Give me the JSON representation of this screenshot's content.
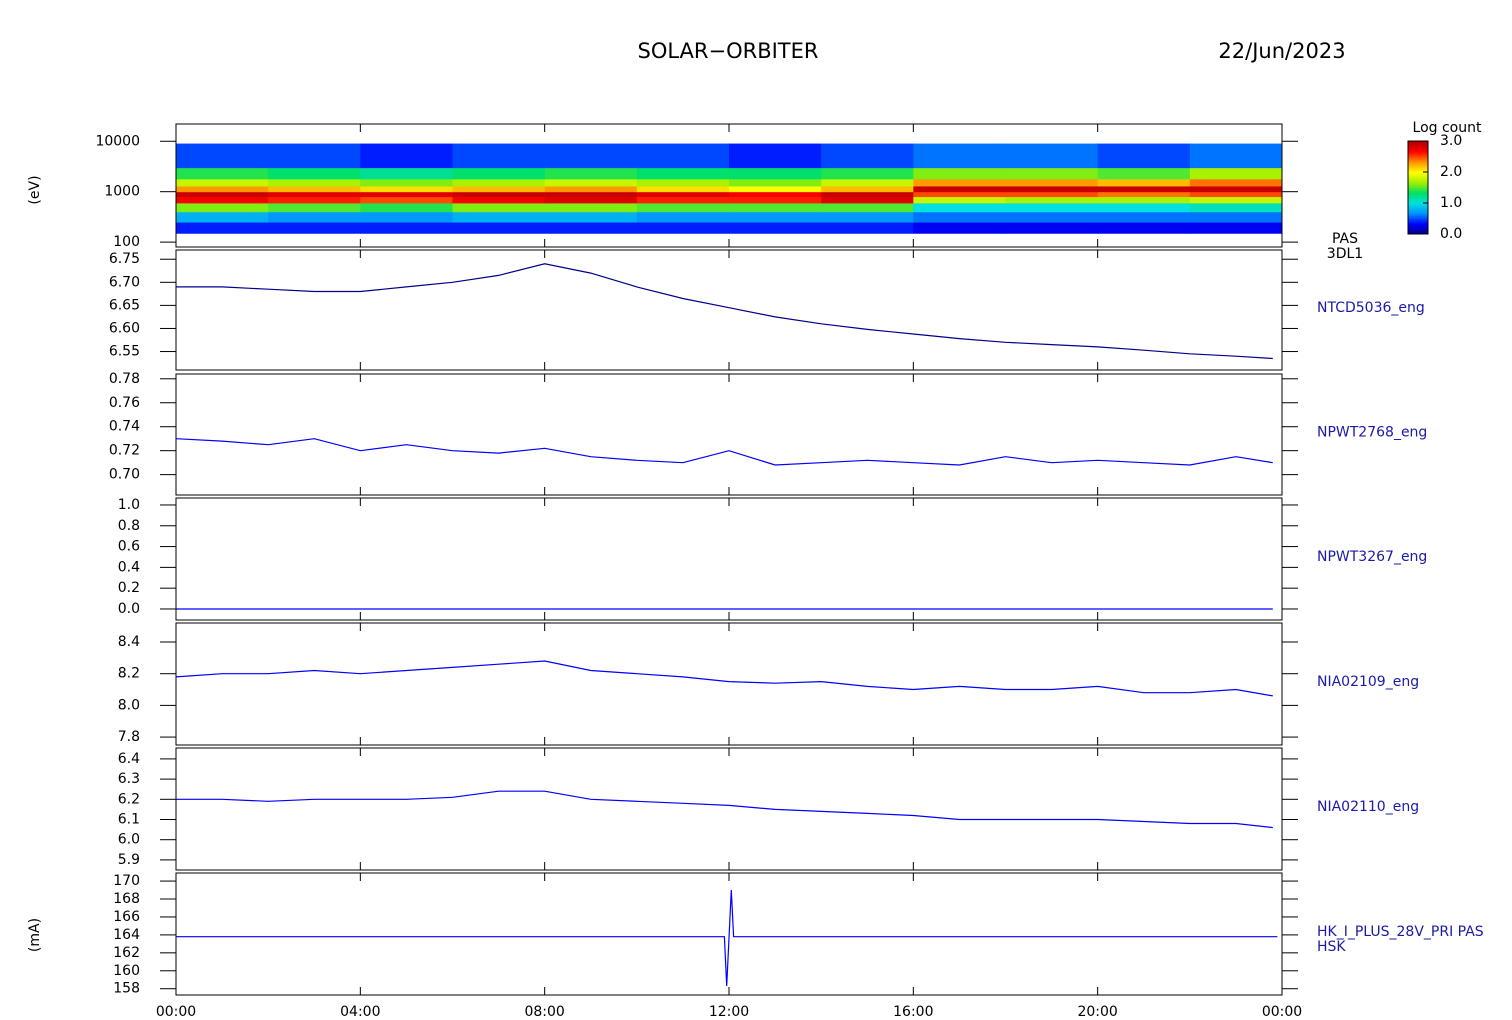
{
  "title": "SOLAR−ORBITER",
  "date": "22/Jun/2023",
  "chart_data": [
    {
      "type": "heatmap",
      "label_lines": [
        "PAS",
        "3DL1"
      ],
      "y_label": "(eV)",
      "log_y": true,
      "xlim": [
        0,
        24
      ],
      "ylim": [
        80,
        22000
      ],
      "yticks": [
        100,
        1000,
        10000
      ],
      "x_edges": [
        0,
        2,
        4,
        6,
        8,
        10,
        12,
        14,
        16,
        18,
        20,
        22,
        24
      ],
      "y_edges": [
        150,
        250,
        400,
        600,
        800,
        1000,
        1300,
        1800,
        3000,
        9000
      ],
      "z": [
        [
          0.4,
          0.4,
          0.4,
          0.4,
          0.4,
          0.4,
          0.4,
          0.4,
          0.3,
          0.3,
          0.3,
          0.3
        ],
        [
          0.8,
          0.7,
          0.7,
          0.8,
          0.8,
          0.7,
          0.7,
          0.7,
          0.6,
          0.6,
          0.6,
          0.6
        ],
        [
          1.6,
          1.5,
          1.4,
          1.6,
          1.6,
          1.5,
          1.5,
          1.5,
          1.0,
          1.0,
          1.0,
          1.1
        ],
        [
          2.7,
          2.6,
          2.5,
          2.7,
          2.8,
          2.6,
          2.6,
          2.8,
          1.8,
          1.7,
          1.7,
          1.8
        ],
        [
          2.9,
          2.8,
          2.8,
          2.9,
          2.9,
          2.8,
          2.7,
          2.9,
          2.5,
          2.5,
          2.4,
          2.5
        ],
        [
          2.3,
          2.2,
          2.1,
          2.2,
          2.3,
          2.1,
          2.0,
          2.2,
          2.9,
          2.9,
          2.9,
          2.9
        ],
        [
          1.8,
          1.7,
          1.6,
          1.7,
          1.8,
          1.7,
          1.6,
          1.8,
          2.3,
          2.3,
          2.2,
          2.4
        ],
        [
          1.4,
          1.3,
          1.2,
          1.3,
          1.4,
          1.3,
          1.3,
          1.4,
          1.6,
          1.6,
          1.5,
          1.7
        ],
        [
          0.5,
          0.5,
          0.4,
          0.5,
          0.5,
          0.5,
          0.4,
          0.5,
          0.6,
          0.6,
          0.5,
          0.6
        ]
      ],
      "colorbar": {
        "title": "Log count",
        "zlim": [
          0,
          3
        ],
        "ticks": [
          {
            "value": 3,
            "label": "3.0"
          },
          {
            "value": 2,
            "label": "2.0"
          },
          {
            "value": 1,
            "label": "1.0"
          },
          {
            "value": 0,
            "label": "0.0"
          }
        ],
        "colors": [
          "#000080",
          "#0000ff",
          "#0090ff",
          "#00e0e0",
          "#00e060",
          "#a0f000",
          "#ffff00",
          "#ff9000",
          "#ff0000",
          "#b00000"
        ]
      }
    },
    {
      "type": "line",
      "label_lines": [
        "NTCD5036_eng"
      ],
      "xlim": [
        0,
        24
      ],
      "ylim": [
        6.51,
        6.77
      ],
      "yticks": [
        {
          "value": 6.55,
          "label": "6.55"
        },
        {
          "value": 6.6,
          "label": "6.60"
        },
        {
          "value": 6.65,
          "label": "6.65"
        },
        {
          "value": 6.7,
          "label": "6.70"
        },
        {
          "value": 6.75,
          "label": "6.75"
        }
      ],
      "x": [
        0,
        1,
        2,
        3,
        4,
        5,
        6,
        7,
        8,
        9,
        10,
        11,
        12,
        13,
        14,
        15,
        16,
        17,
        18,
        19,
        20,
        21,
        22,
        23,
        23.8
      ],
      "series": [
        {
          "color": "#00008b",
          "values": [
            6.69,
            6.69,
            6.685,
            6.68,
            6.68,
            6.69,
            6.7,
            6.715,
            6.74,
            6.72,
            6.69,
            6.665,
            6.645,
            6.625,
            6.61,
            6.598,
            6.588,
            6.578,
            6.57,
            6.565,
            6.56,
            6.553,
            6.545,
            6.54,
            6.535
          ]
        }
      ]
    },
    {
      "type": "line",
      "label_lines": [
        "NPWT2768_eng"
      ],
      "xlim": [
        0,
        24
      ],
      "ylim": [
        0.683,
        0.784
      ],
      "yticks": [
        {
          "value": 0.7,
          "label": "0.70"
        },
        {
          "value": 0.72,
          "label": "0.72"
        },
        {
          "value": 0.74,
          "label": "0.74"
        },
        {
          "value": 0.76,
          "label": "0.76"
        },
        {
          "value": 0.78,
          "label": "0.78"
        }
      ],
      "x": [
        0,
        1,
        2,
        3,
        4,
        5,
        6,
        7,
        8,
        9,
        10,
        11,
        12,
        13,
        14,
        15,
        16,
        17,
        18,
        19,
        20,
        21,
        22,
        23,
        23.8
      ],
      "series": [
        {
          "color": "#0000ff",
          "values": [
            0.73,
            0.728,
            0.725,
            0.73,
            0.72,
            0.725,
            0.72,
            0.718,
            0.722,
            0.715,
            0.712,
            0.71,
            0.72,
            0.708,
            0.71,
            0.712,
            0.71,
            0.708,
            0.715,
            0.71,
            0.712,
            0.71,
            0.708,
            0.715,
            0.71
          ]
        }
      ]
    },
    {
      "type": "line",
      "label_lines": [
        "NPWT3267_eng"
      ],
      "xlim": [
        0,
        24
      ],
      "ylim": [
        -0.106,
        1.067
      ],
      "yticks": [
        {
          "value": 0,
          "label": "0.0"
        },
        {
          "value": 0.2,
          "label": "0.2"
        },
        {
          "value": 0.4,
          "label": "0.4"
        },
        {
          "value": 0.6,
          "label": "0.6"
        },
        {
          "value": 0.8,
          "label": "0.8"
        },
        {
          "value": 1,
          "label": "1.0"
        }
      ],
      "x": [
        0,
        23.8
      ],
      "series": [
        {
          "color": "#0000ff",
          "values": [
            0,
            0
          ]
        }
      ]
    },
    {
      "type": "line",
      "label_lines": [
        "NIA02109_eng"
      ],
      "xlim": [
        0,
        24
      ],
      "ylim": [
        7.75,
        8.52
      ],
      "yticks": [
        {
          "value": 7.8,
          "label": "7.8"
        },
        {
          "value": 8,
          "label": "8.0"
        },
        {
          "value": 8.2,
          "label": "8.2"
        },
        {
          "value": 8.4,
          "label": "8.4"
        }
      ],
      "x": [
        0,
        1,
        2,
        3,
        4,
        5,
        6,
        7,
        8,
        9,
        10,
        11,
        12,
        13,
        14,
        15,
        16,
        17,
        18,
        19,
        20,
        21,
        22,
        23,
        23.8
      ],
      "series": [
        {
          "color": "#0000ff",
          "values": [
            8.18,
            8.2,
            8.2,
            8.22,
            8.2,
            8.22,
            8.24,
            8.26,
            8.28,
            8.22,
            8.2,
            8.18,
            8.15,
            8.14,
            8.15,
            8.12,
            8.1,
            8.12,
            8.1,
            8.1,
            8.12,
            8.08,
            8.08,
            8.1,
            8.06
          ]
        }
      ]
    },
    {
      "type": "line",
      "label_lines": [
        "NIA02110_eng"
      ],
      "xlim": [
        0,
        24
      ],
      "ylim": [
        5.85,
        6.454
      ],
      "yticks": [
        {
          "value": 5.9,
          "label": "5.9"
        },
        {
          "value": 6,
          "label": "6.0"
        },
        6.1,
        6.2,
        6.3,
        6.4
      ],
      "x": [
        0,
        1,
        2,
        3,
        4,
        5,
        6,
        7,
        8,
        9,
        10,
        11,
        12,
        13,
        14,
        15,
        16,
        17,
        18,
        19,
        20,
        21,
        22,
        23,
        23.8
      ],
      "series": [
        {
          "color": "#0000ff",
          "values": [
            6.2,
            6.2,
            6.19,
            6.2,
            6.2,
            6.2,
            6.21,
            6.24,
            6.24,
            6.2,
            6.19,
            6.18,
            6.17,
            6.15,
            6.14,
            6.13,
            6.12,
            6.1,
            6.1,
            6.1,
            6.1,
            6.09,
            6.08,
            6.08,
            6.06
          ]
        }
      ]
    },
    {
      "type": "line",
      "label_lines": [
        "HK_I_PLUS_28V_PRI PAS",
        "HSK"
      ],
      "y_label": "(mA)",
      "xlim": [
        0,
        24
      ],
      "ylim": [
        157.3,
        170.9
      ],
      "yticks": [
        158,
        160,
        162,
        164,
        166,
        168,
        170
      ],
      "xticks": [
        {
          "value": 0,
          "label": "00:00"
        },
        {
          "value": 4,
          "label": "04:00"
        },
        {
          "value": 8,
          "label": "08:00"
        },
        {
          "value": 12,
          "label": "12:00"
        },
        {
          "value": 16,
          "label": "16:00"
        },
        {
          "value": 20,
          "label": "20:00"
        },
        {
          "value": 24,
          "label": "00:00"
        }
      ],
      "x": [
        0,
        2,
        4,
        6,
        8,
        10,
        11.9,
        11.95,
        12.05,
        12.1,
        14,
        16,
        18,
        20,
        22,
        23.9
      ],
      "series": [
        {
          "color": "#0000ff",
          "values": [
            163.8,
            163.8,
            163.8,
            163.8,
            163.8,
            163.8,
            163.8,
            158.3,
            169,
            163.8,
            163.8,
            163.8,
            163.8,
            163.8,
            163.8,
            163.8
          ]
        }
      ]
    }
  ]
}
